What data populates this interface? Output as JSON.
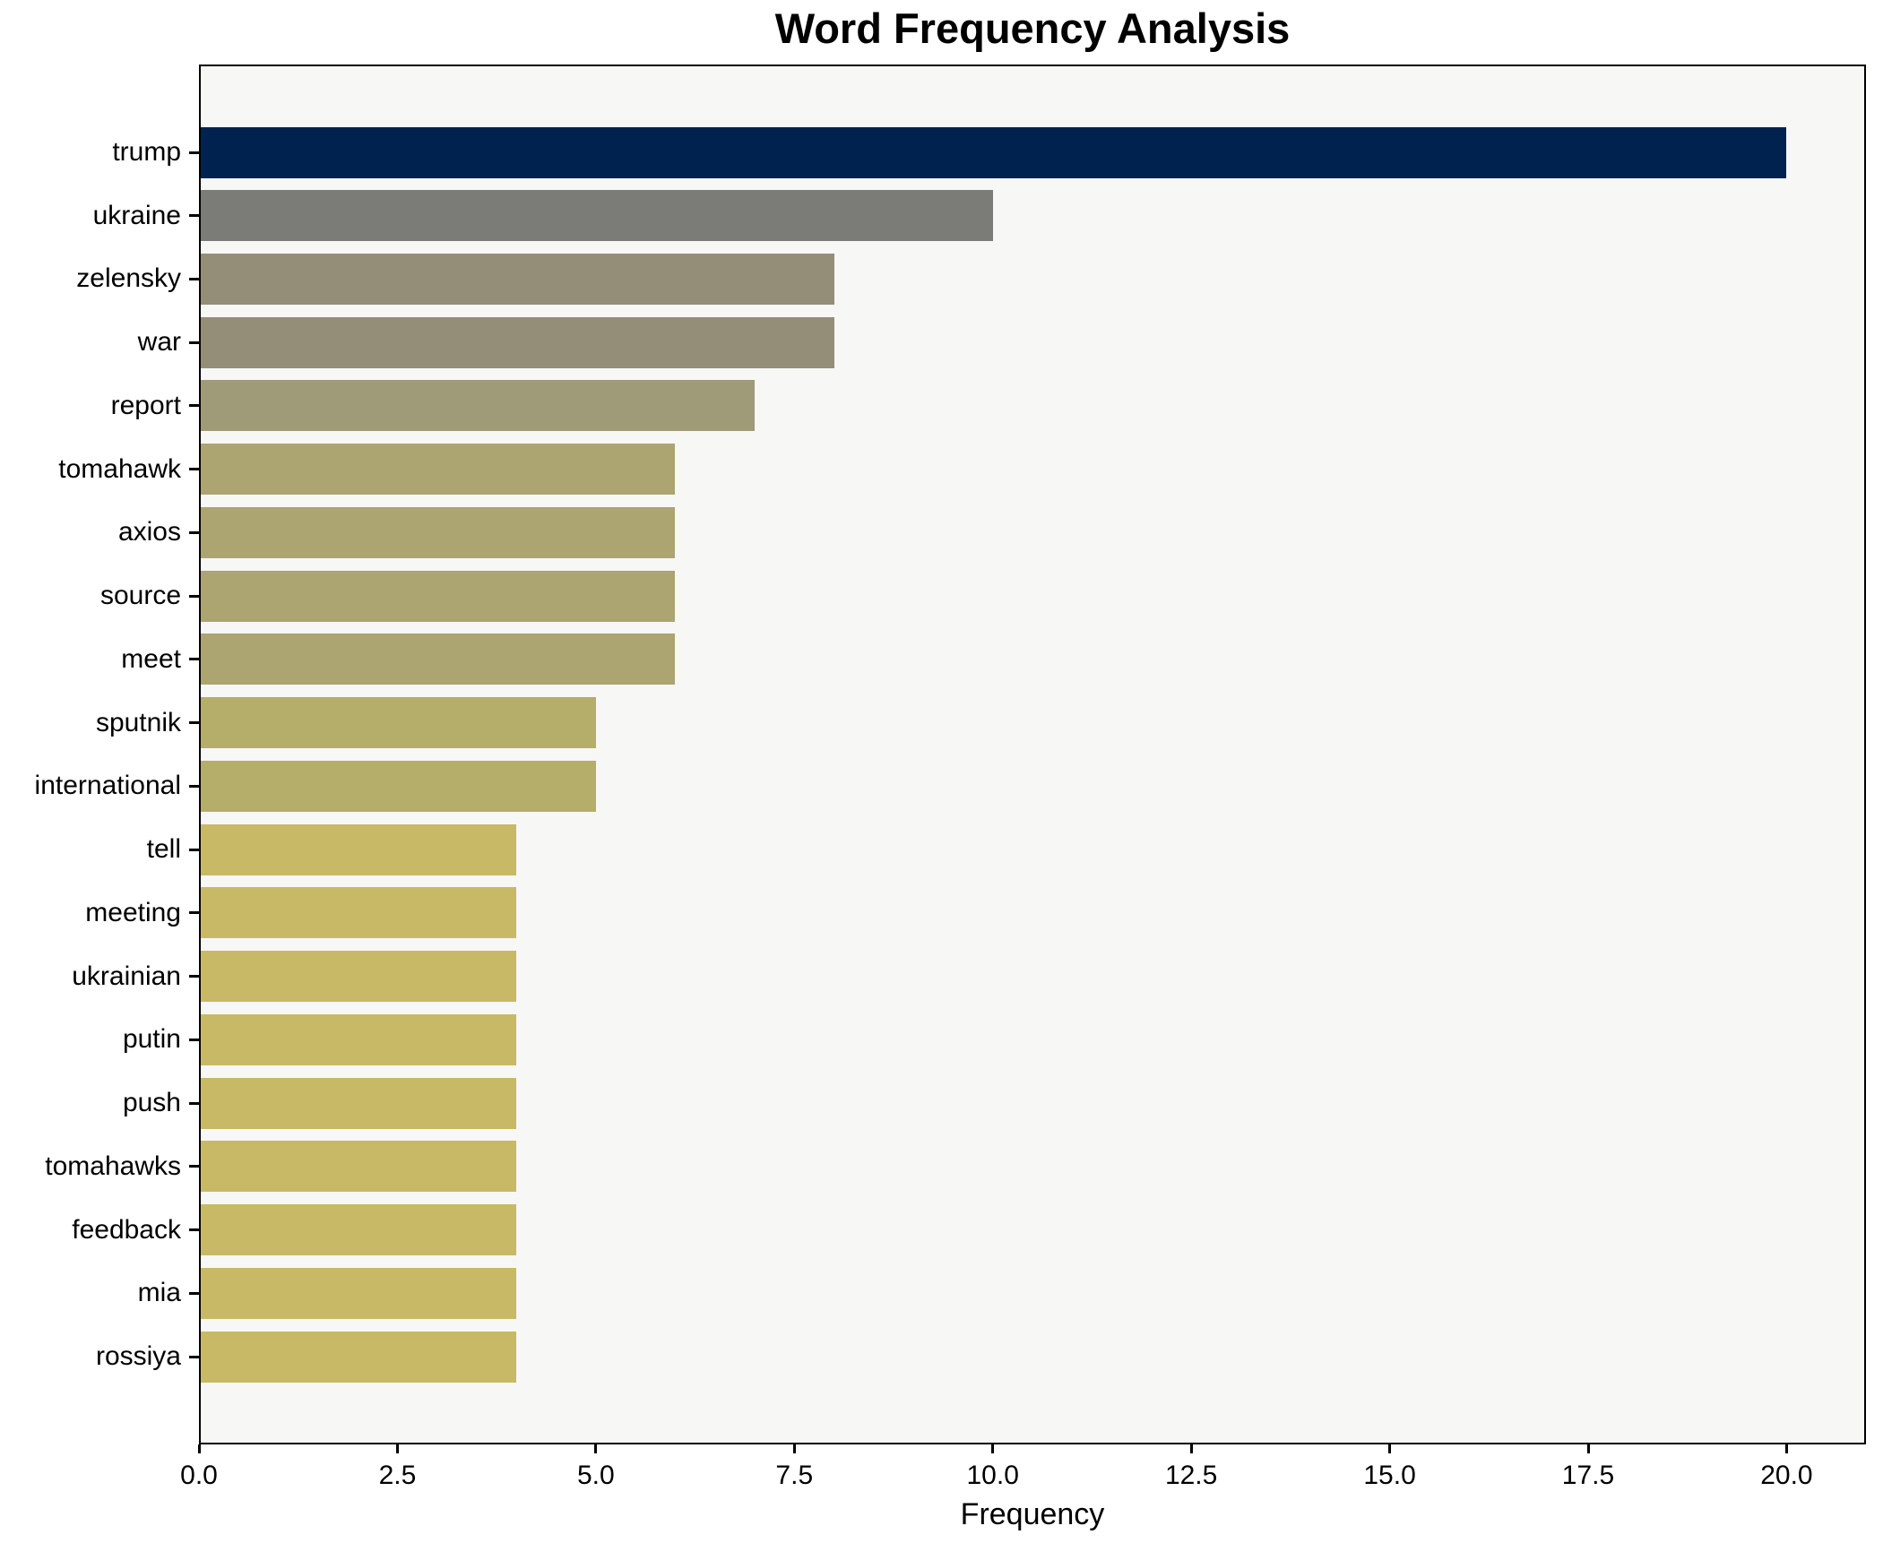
{
  "title": "Word Frequency Analysis",
  "chart_data": {
    "type": "bar",
    "orientation": "horizontal",
    "title": "Word Frequency Analysis",
    "xlabel": "Frequency",
    "ylabel": "",
    "categories": [
      "trump",
      "ukraine",
      "zelensky",
      "war",
      "report",
      "tomahawk",
      "axios",
      "source",
      "meet",
      "sputnik",
      "international",
      "tell",
      "meeting",
      "ukrainian",
      "putin",
      "push",
      "tomahawks",
      "feedback",
      "mia",
      "rossiya"
    ],
    "values": [
      20,
      10,
      8,
      8,
      7,
      6,
      6,
      6,
      6,
      5,
      5,
      4,
      4,
      4,
      4,
      4,
      4,
      4,
      4,
      4
    ],
    "bar_colors": [
      "#00224e",
      "#7b7b78",
      "#948e78",
      "#948e78",
      "#9f9a78",
      "#aca471",
      "#aca471",
      "#aca471",
      "#aca471",
      "#b5ad6a",
      "#b5ad6a",
      "#c8b966",
      "#c8b966",
      "#c8b966",
      "#c8b966",
      "#c8b966",
      "#c8b966",
      "#c8b966",
      "#c8b966",
      "#c8b966"
    ],
    "xlim": [
      0,
      21
    ],
    "x_tick_values": [
      0,
      2.5,
      5,
      7.5,
      10,
      12.5,
      15,
      17.5,
      20
    ],
    "x_tick_labels": [
      "0.0",
      "2.5",
      "5.0",
      "7.5",
      "10.0",
      "12.5",
      "15.0",
      "17.5",
      "20.0"
    ],
    "grid": false,
    "legend": false,
    "plot_background": "#f7f7f6",
    "figure_background": "#ffffff",
    "spine_color": "#000000",
    "text_color": "#000000"
  }
}
